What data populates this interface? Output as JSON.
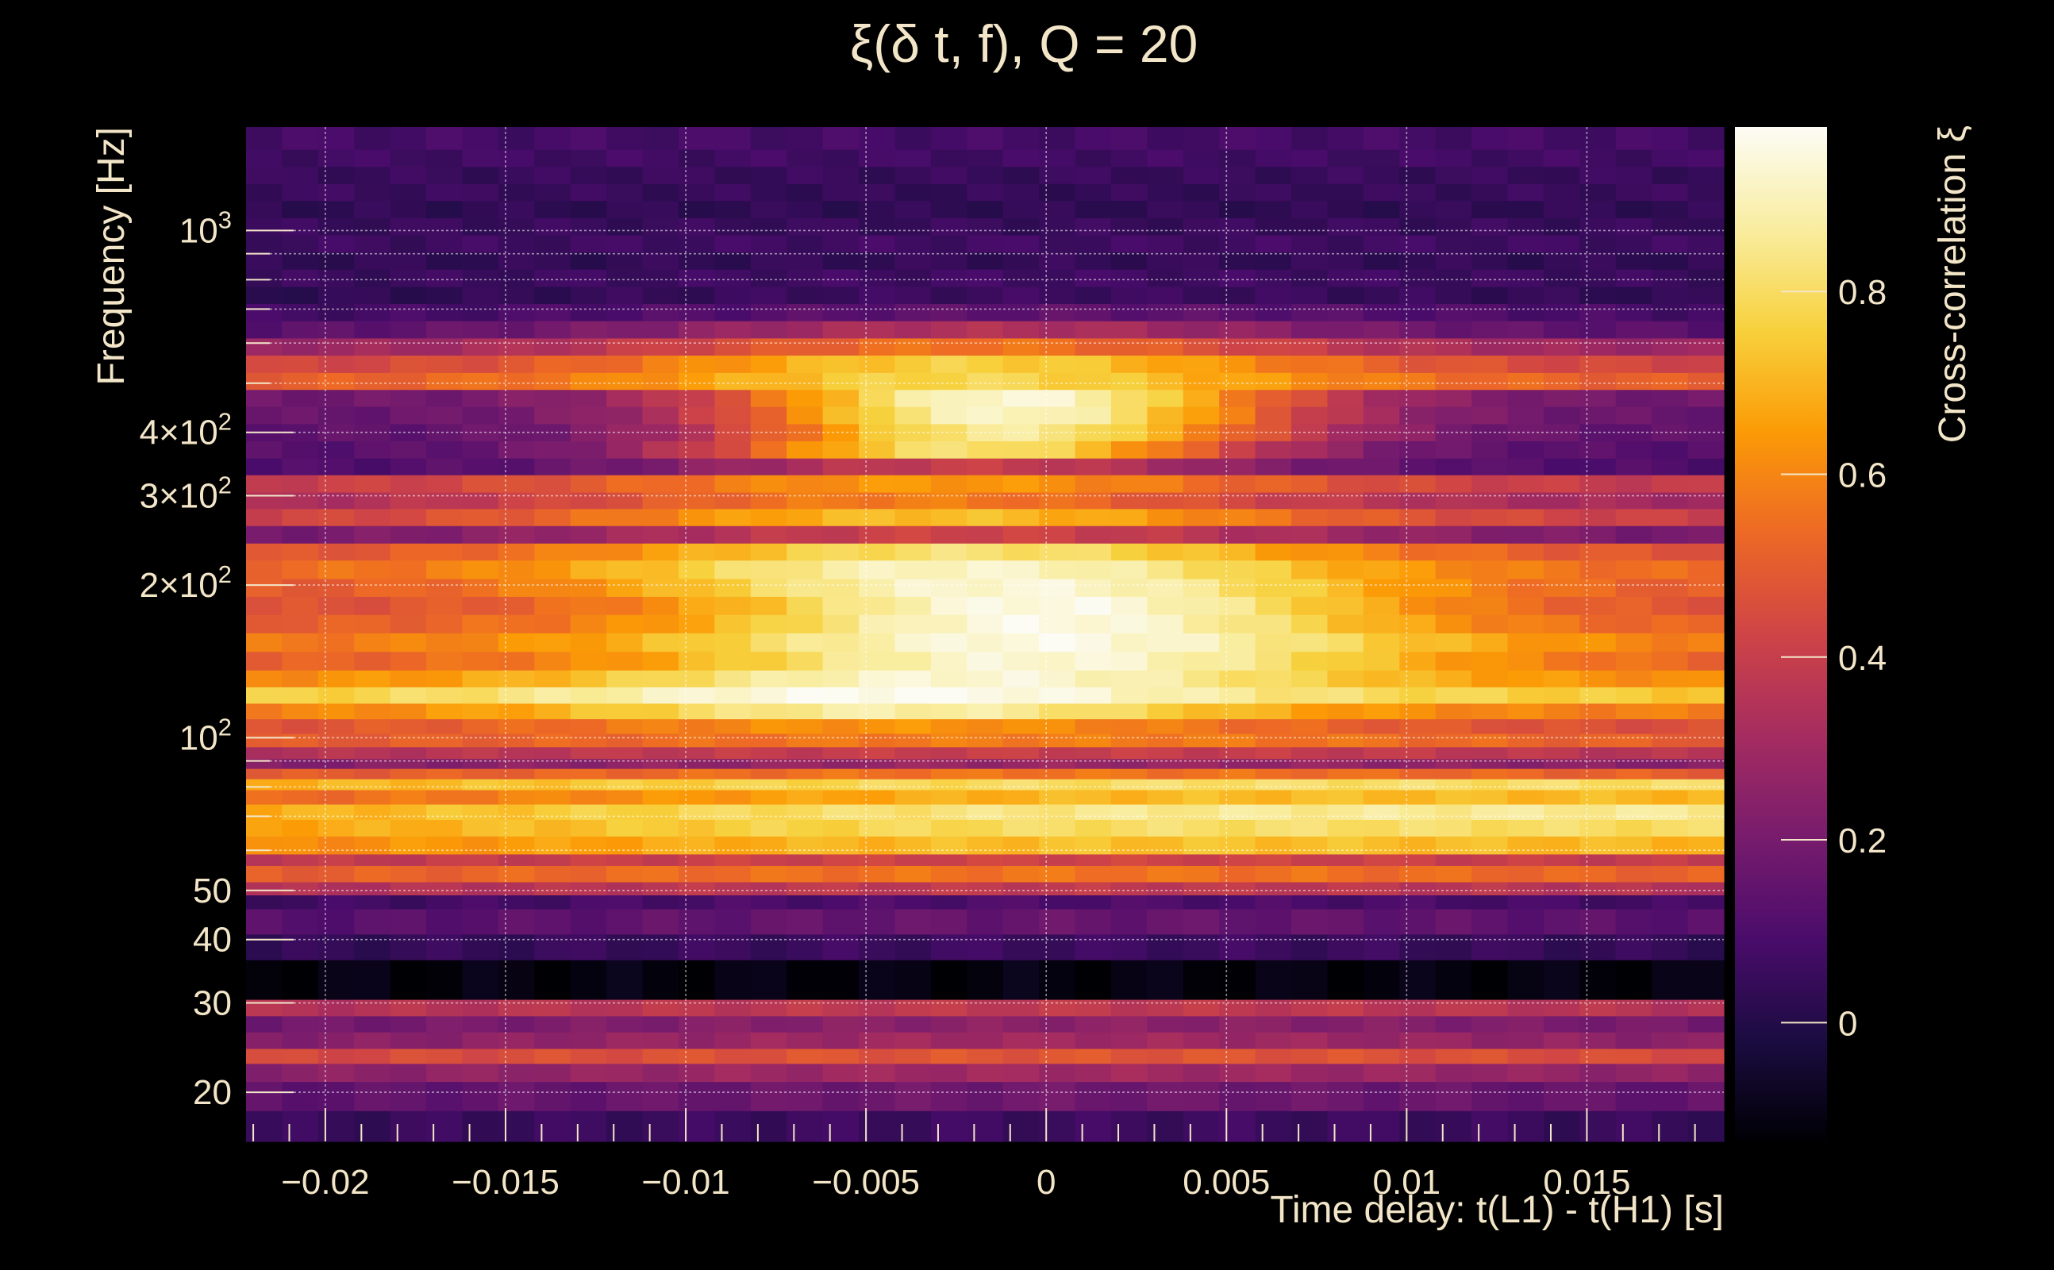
{
  "chart_data": {
    "type": "heatmap",
    "title": "ξ(δ t, f), Q = 20",
    "xlabel": "Time delay: t(L1) - t(H1) [s]",
    "ylabel": "Frequency [Hz]",
    "colorbar_label": "Cross-correlation ξ",
    "colormap": "inferno",
    "x_range": [
      -0.0222,
      0.0188
    ],
    "y_range": [
      16,
      1600
    ],
    "y_scale": "log",
    "z_range": [
      -0.13,
      0.98
    ],
    "grid": true,
    "x_ticks": [
      {
        "value": -0.02,
        "label": "−0.02"
      },
      {
        "value": -0.015,
        "label": "−0.015"
      },
      {
        "value": -0.01,
        "label": "−0.01"
      },
      {
        "value": -0.005,
        "label": "−0.005"
      },
      {
        "value": 0,
        "label": "0"
      },
      {
        "value": 0.005,
        "label": "0.005"
      },
      {
        "value": 0.01,
        "label": "0.01"
      },
      {
        "value": 0.015,
        "label": "0.015"
      }
    ],
    "y_ticks": [
      {
        "value": 20,
        "label": "20"
      },
      {
        "value": 30,
        "label": "30"
      },
      {
        "value": 40,
        "label": "40"
      },
      {
        "value": 50,
        "label": "50"
      },
      {
        "value": 100,
        "base": "10",
        "exp": "2"
      },
      {
        "value": 200,
        "base": "2×10",
        "exp": "2"
      },
      {
        "value": 300,
        "base": "3×10",
        "exp": "2"
      },
      {
        "value": 400,
        "base": "4×10",
        "exp": "2"
      },
      {
        "value": 1000,
        "base": "10",
        "exp": "3"
      }
    ],
    "y_minor_ticks": [
      60,
      70,
      80,
      90,
      500,
      600,
      700,
      800,
      900
    ],
    "colorbar_ticks": [
      {
        "value": 0,
        "label": "0"
      },
      {
        "value": 0.2,
        "label": "0.2"
      },
      {
        "value": 0.4,
        "label": "0.4"
      },
      {
        "value": 0.6,
        "label": "0.6"
      },
      {
        "value": 0.8,
        "label": "0.8"
      }
    ],
    "x_bin_count": 41,
    "rows": [
      {
        "f_lo": 16,
        "f_hi": 18.4,
        "base": 0.04,
        "peak": 0.02,
        "center": 0,
        "width": 0.02,
        "tilt": 0
      },
      {
        "f_lo": 18.4,
        "f_hi": 21,
        "base": 0.12,
        "peak": 0.06,
        "center": 0,
        "width": 0.02,
        "tilt": 0
      },
      {
        "f_lo": 21,
        "f_hi": 22.8,
        "base": 0.22,
        "peak": 0.08,
        "center": 0,
        "width": 0.02,
        "tilt": 0
      },
      {
        "f_lo": 22.8,
        "f_hi": 24.4,
        "base": 0.42,
        "peak": 0.06,
        "center": 0,
        "width": 0.02,
        "tilt": 0
      },
      {
        "f_lo": 24.4,
        "f_hi": 26.3,
        "base": 0.2,
        "peak": 0.1,
        "center": 0,
        "width": 0.02,
        "tilt": 0
      },
      {
        "f_lo": 26.3,
        "f_hi": 28.3,
        "base": 0.15,
        "peak": 0.1,
        "center": 0,
        "width": 0.02,
        "tilt": 0
      },
      {
        "f_lo": 28.3,
        "f_hi": 30.5,
        "base": 0.33,
        "peak": 0.05,
        "center": 0,
        "width": 0.02,
        "tilt": 0
      },
      {
        "f_lo": 30.5,
        "f_hi": 36.5,
        "base": -0.11,
        "peak": 0,
        "center": 0,
        "width": 0.02,
        "tilt": 0
      },
      {
        "f_lo": 36.5,
        "f_hi": 41,
        "base": 0.02,
        "peak": 0.04,
        "center": 0,
        "width": 0.02,
        "tilt": 0
      },
      {
        "f_lo": 41,
        "f_hi": 46,
        "base": 0.1,
        "peak": 0.06,
        "center": 0,
        "width": 0.02,
        "tilt": 0
      },
      {
        "f_lo": 46,
        "f_hi": 49,
        "base": 0.05,
        "peak": 0.05,
        "center": 0,
        "width": 0.02,
        "tilt": 0
      },
      {
        "f_lo": 49,
        "f_hi": 52,
        "base": 0.32,
        "peak": 0.06,
        "center": 0,
        "width": 0.02,
        "tilt": 0
      },
      {
        "f_lo": 52,
        "f_hi": 56,
        "base": 0.48,
        "peak": 0.08,
        "center": 0,
        "width": 0.02,
        "tilt": 0
      },
      {
        "f_lo": 56,
        "f_hi": 59,
        "base": 0.36,
        "peak": 0.06,
        "center": 0,
        "width": 0.02,
        "tilt": 0
      },
      {
        "f_lo": 59,
        "f_hi": 64,
        "base": 0.62,
        "peak": 0.1,
        "center": 0,
        "width": 0.02,
        "tilt": 0.04
      },
      {
        "f_lo": 64,
        "f_hi": 69,
        "base": 0.7,
        "peak": 0.1,
        "center": 0,
        "width": 0.02,
        "tilt": 0.06
      },
      {
        "f_lo": 69,
        "f_hi": 74,
        "base": 0.74,
        "peak": 0.1,
        "center": 0,
        "width": 0.02,
        "tilt": 0.08
      },
      {
        "f_lo": 74,
        "f_hi": 79,
        "base": 0.58,
        "peak": 0.12,
        "center": 0,
        "width": 0.02,
        "tilt": 0.08
      },
      {
        "f_lo": 79,
        "f_hi": 83,
        "base": 0.72,
        "peak": 0.08,
        "center": 0,
        "width": 0.02,
        "tilt": 0.05
      },
      {
        "f_lo": 83,
        "f_hi": 87,
        "base": 0.46,
        "peak": 0.1,
        "center": 0,
        "width": 0.02,
        "tilt": 0
      },
      {
        "f_lo": 87,
        "f_hi": 91,
        "base": 0.2,
        "peak": 0.08,
        "center": 0,
        "width": 0.02,
        "tilt": 0
      },
      {
        "f_lo": 91,
        "f_hi": 96,
        "base": 0.32,
        "peak": 0.08,
        "center": 0,
        "width": 0.02,
        "tilt": 0
      },
      {
        "f_lo": 96,
        "f_hi": 102,
        "base": 0.48,
        "peak": 0.1,
        "center": 0,
        "width": 0.015,
        "tilt": 0
      },
      {
        "f_lo": 102,
        "f_hi": 109,
        "base": 0.45,
        "peak": 0.18,
        "center": -0.004,
        "width": 0.012,
        "tilt": 0
      },
      {
        "f_lo": 109,
        "f_hi": 117,
        "base": 0.58,
        "peak": 0.3,
        "center": -0.004,
        "width": 0.01,
        "tilt": 0
      },
      {
        "f_lo": 117,
        "f_hi": 126,
        "base": 0.74,
        "peak": 0.24,
        "center": -0.004,
        "width": 0.011,
        "tilt": 0
      },
      {
        "f_lo": 126,
        "f_hi": 136,
        "base": 0.6,
        "peak": 0.34,
        "center": -0.002,
        "width": 0.011,
        "tilt": 0
      },
      {
        "f_lo": 136,
        "f_hi": 148,
        "base": 0.5,
        "peak": 0.44,
        "center": 0,
        "width": 0.011,
        "tilt": 0
      },
      {
        "f_lo": 148,
        "f_hi": 161,
        "base": 0.56,
        "peak": 0.4,
        "center": 0,
        "width": 0.011,
        "tilt": 0
      },
      {
        "f_lo": 161,
        "f_hi": 175,
        "base": 0.5,
        "peak": 0.46,
        "center": 0,
        "width": 0.01,
        "tilt": 0
      },
      {
        "f_lo": 175,
        "f_hi": 190,
        "base": 0.46,
        "peak": 0.5,
        "center": 0,
        "width": 0.01,
        "tilt": 0
      },
      {
        "f_lo": 190,
        "f_hi": 206,
        "base": 0.48,
        "peak": 0.46,
        "center": -0.001,
        "width": 0.011,
        "tilt": 0
      },
      {
        "f_lo": 206,
        "f_hi": 224,
        "base": 0.52,
        "peak": 0.4,
        "center": -0.002,
        "width": 0.011,
        "tilt": 0
      },
      {
        "f_lo": 224,
        "f_hi": 242,
        "base": 0.46,
        "peak": 0.36,
        "center": -0.002,
        "width": 0.011,
        "tilt": 0
      },
      {
        "f_lo": 242,
        "f_hi": 262,
        "base": 0.18,
        "peak": 0.24,
        "center": -0.002,
        "width": 0.012,
        "tilt": 0
      },
      {
        "f_lo": 262,
        "f_hi": 283,
        "base": 0.4,
        "peak": 0.32,
        "center": -0.003,
        "width": 0.011,
        "tilt": 0
      },
      {
        "f_lo": 283,
        "f_hi": 305,
        "base": 0.3,
        "peak": 0.28,
        "center": -0.004,
        "width": 0.011,
        "tilt": 0
      },
      {
        "f_lo": 305,
        "f_hi": 330,
        "base": 0.38,
        "peak": 0.26,
        "center": -0.003,
        "width": 0.011,
        "tilt": 0
      },
      {
        "f_lo": 330,
        "f_hi": 356,
        "base": 0.1,
        "peak": 0.3,
        "center": -0.002,
        "width": 0.009,
        "tilt": 0
      },
      {
        "f_lo": 356,
        "f_hi": 385,
        "base": 0.12,
        "peak": 0.7,
        "center": -0.002,
        "width": 0.008,
        "tilt": 0
      },
      {
        "f_lo": 385,
        "f_hi": 416,
        "base": 0.14,
        "peak": 0.72,
        "center": -0.001,
        "width": 0.008,
        "tilt": 0
      },
      {
        "f_lo": 416,
        "f_hi": 450,
        "base": 0.16,
        "peak": 0.76,
        "center": -0.001,
        "width": 0.008,
        "tilt": 0
      },
      {
        "f_lo": 450,
        "f_hi": 486,
        "base": 0.18,
        "peak": 0.76,
        "center": -0.001,
        "width": 0.008,
        "tilt": 0
      },
      {
        "f_lo": 486,
        "f_hi": 525,
        "base": 0.5,
        "peak": 0.28,
        "center": -0.002,
        "width": 0.01,
        "tilt": 0
      },
      {
        "f_lo": 525,
        "f_hi": 568,
        "base": 0.42,
        "peak": 0.34,
        "center": -0.002,
        "width": 0.01,
        "tilt": 0
      },
      {
        "f_lo": 568,
        "f_hi": 614,
        "base": 0.28,
        "peak": 0.28,
        "center": -0.002,
        "width": 0.01,
        "tilt": 0
      },
      {
        "f_lo": 614,
        "f_hi": 664,
        "base": 0.12,
        "peak": 0.22,
        "center": -0.002,
        "width": 0.011,
        "tilt": 0
      },
      {
        "f_lo": 664,
        "f_hi": 718,
        "base": 0.06,
        "peak": 0.08,
        "center": 0,
        "width": 0.015,
        "tilt": 0
      },
      {
        "f_lo": 718,
        "f_hi": 776,
        "base": 0.02,
        "peak": 0.04,
        "center": 0,
        "width": 0.015,
        "tilt": 0
      },
      {
        "f_lo": 776,
        "f_hi": 839,
        "base": 0.05,
        "peak": 0.02,
        "center": 0,
        "width": 0.015,
        "tilt": 0
      },
      {
        "f_lo": 839,
        "f_hi": 907,
        "base": 0.03,
        "peak": 0.01,
        "center": 0,
        "width": 0.015,
        "tilt": 0
      },
      {
        "f_lo": 907,
        "f_hi": 980,
        "base": 0.06,
        "peak": 0.01,
        "center": 0,
        "width": 0.015,
        "tilt": 0
      },
      {
        "f_lo": 980,
        "f_hi": 1060,
        "base": 0.05,
        "peak": 0,
        "center": 0,
        "width": 0.015,
        "tilt": 0
      },
      {
        "f_lo": 1060,
        "f_hi": 1146,
        "base": 0.03,
        "peak": 0,
        "center": 0,
        "width": 0.015,
        "tilt": 0
      },
      {
        "f_lo": 1146,
        "f_hi": 1238,
        "base": 0.06,
        "peak": -0.02,
        "center": 0,
        "width": 0.015,
        "tilt": 0
      },
      {
        "f_lo": 1238,
        "f_hi": 1338,
        "base": 0.05,
        "peak": 0,
        "center": 0,
        "width": 0.015,
        "tilt": 0
      },
      {
        "f_lo": 1338,
        "f_hi": 1446,
        "base": 0.07,
        "peak": 0,
        "center": 0,
        "width": 0.015,
        "tilt": 0
      },
      {
        "f_lo": 1446,
        "f_hi": 1600,
        "base": 0.08,
        "peak": 0,
        "center": 0,
        "width": 0.015,
        "tilt": 0
      }
    ]
  }
}
